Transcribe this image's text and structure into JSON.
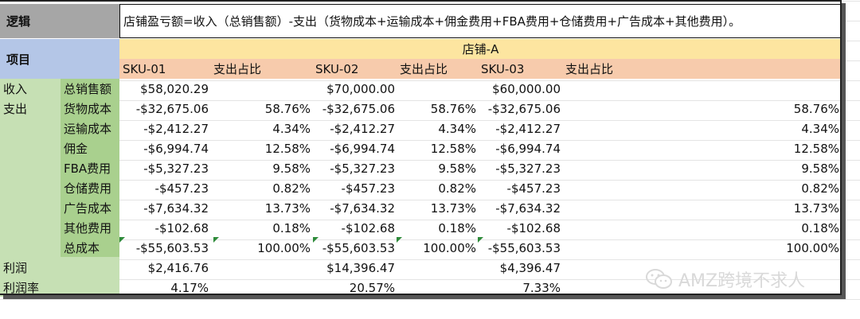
{
  "logic": {
    "label": "逻辑",
    "text": "店铺盈亏额=收入（总销售额）-支出（货物成本+运输成本+佣金费用+FBA费用+仓储费用+广告成本+其他费用）。"
  },
  "items_label": "项目",
  "store_name": "店铺-A",
  "headers": [
    "SKU-01",
    "支出占比",
    "SKU-02",
    "支出占比",
    "SKU-03",
    "支出占比"
  ],
  "rows": [
    {
      "cat": "收入",
      "sub": "总销售额",
      "v1": "$58,020.29",
      "p1": "",
      "v2": "$70,000.00",
      "p2": "",
      "v3": "$60,000.00",
      "p3": ""
    },
    {
      "cat": "支出",
      "sub": "货物成本",
      "v1": "-$32,675.06",
      "p1": "58.76%",
      "v2": "-$32,675.06",
      "p2": "58.76%",
      "v3": "-$32,675.06",
      "p3": "58.76%"
    },
    {
      "cat": "",
      "sub": "运输成本",
      "v1": "-$2,412.27",
      "p1": "4.34%",
      "v2": "-$2,412.27",
      "p2": "4.34%",
      "v3": "-$2,412.27",
      "p3": "4.34%"
    },
    {
      "cat": "",
      "sub": "佣金",
      "v1": "-$6,994.74",
      "p1": "12.58%",
      "v2": "-$6,994.74",
      "p2": "12.58%",
      "v3": "-$6,994.74",
      "p3": "12.58%"
    },
    {
      "cat": "",
      "sub": "FBA费用",
      "v1": "-$5,327.23",
      "p1": "9.58%",
      "v2": "-$5,327.23",
      "p2": "9.58%",
      "v3": "-$5,327.23",
      "p3": "9.58%"
    },
    {
      "cat": "",
      "sub": "仓储费用",
      "v1": "-$457.23",
      "p1": "0.82%",
      "v2": "-$457.23",
      "p2": "0.82%",
      "v3": "-$457.23",
      "p3": "0.82%"
    },
    {
      "cat": "",
      "sub": "广告成本",
      "v1": "-$7,634.32",
      "p1": "13.73%",
      "v2": "-$7,634.32",
      "p2": "13.73%",
      "v3": "-$7,634.32",
      "p3": "13.73%"
    },
    {
      "cat": "",
      "sub": "其他费用",
      "v1": "-$102.68",
      "p1": "0.18%",
      "v2": "-$102.68",
      "p2": "0.18%",
      "v3": "-$102.68",
      "p3": "0.18%"
    },
    {
      "cat": "",
      "sub": "总成本",
      "v1": "-$55,603.53",
      "p1": "100.00%",
      "v2": "-$55,603.53",
      "p2": "100.00%",
      "v3": "-$55,603.53",
      "p3": "100.00%"
    },
    {
      "cat": "利润",
      "sub": "",
      "v1": "$2,416.76",
      "p1": "",
      "v2": "$14,396.47",
      "p2": "",
      "v3": "$4,396.47",
      "p3": ""
    },
    {
      "cat": "利润率",
      "sub": "",
      "v1": "4.17%",
      "p1": "",
      "v2": "20.57%",
      "p2": "",
      "v3": "7.33%",
      "p3": ""
    }
  ],
  "watermark": "AMZ跨境不求人",
  "colors": {
    "logic_label_bg": "#a6a6a6",
    "items_label_bg": "#b4c6e7",
    "store_band_bg": "#fde5a0",
    "header_band_bg": "#f7cbac",
    "category_bg": "#c6e0b4",
    "subcategory_bg": "#a9d08e",
    "error_triangle": "#2e8b3a"
  },
  "icons": [
    "wechat-icon"
  ]
}
